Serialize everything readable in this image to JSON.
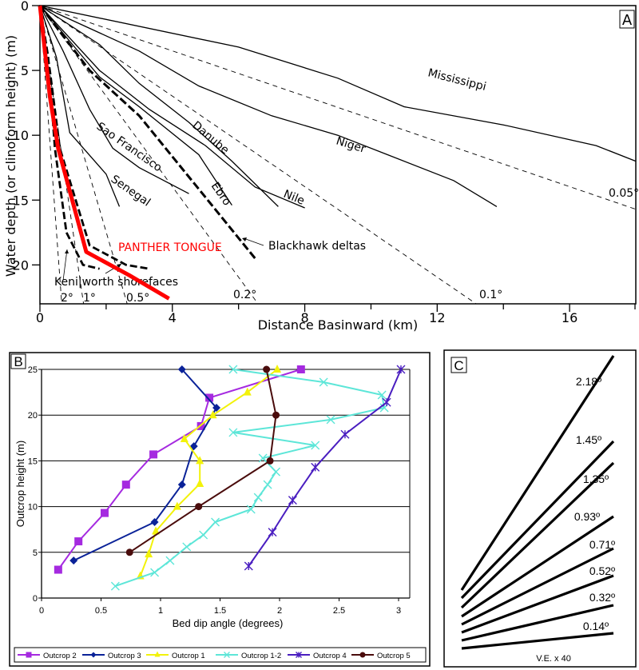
{
  "chart_data": [
    {
      "panel": "A",
      "type": "line",
      "xlabel": "Distance Basinward (km)",
      "ylabel": "Water depth (or clinoform height) (m)",
      "xlim": [
        0,
        18
      ],
      "ylim": [
        0,
        23
      ],
      "y_inverted": true,
      "xticks": [
        0,
        4,
        8,
        12,
        16
      ],
      "xtick_minor": [
        2,
        6,
        10,
        14,
        18
      ],
      "yticks": [
        0,
        5,
        10,
        15,
        20
      ],
      "panel_label": "A",
      "rivers": [
        {
          "name": "Mississippi",
          "label": "Mississippi",
          "points": [
            [
              0,
              0
            ],
            [
              6,
              3.2
            ],
            [
              9,
              5.6
            ],
            [
              11,
              7.8
            ],
            [
              14,
              9.2
            ],
            [
              16.8,
              10.8
            ],
            [
              18,
              12
            ]
          ]
        },
        {
          "name": "Niger",
          "label": "Niger",
          "points": [
            [
              0,
              0
            ],
            [
              3,
              3.5
            ],
            [
              4.8,
              6.2
            ],
            [
              7,
              8.5
            ],
            [
              9,
              10
            ],
            [
              10.5,
              11.5
            ],
            [
              12.5,
              13.5
            ],
            [
              13.8,
              15.5
            ]
          ]
        },
        {
          "name": "Danube",
          "label": "Danube",
          "points": [
            [
              0,
              0
            ],
            [
              1.8,
              3
            ],
            [
              3,
              6
            ],
            [
              4.5,
              9
            ],
            [
              5.8,
              12
            ],
            [
              7.2,
              15.5
            ]
          ]
        },
        {
          "name": "Nile",
          "label": "Nile",
          "points": [
            [
              0,
              0
            ],
            [
              1.8,
              5
            ],
            [
              3.3,
              8
            ],
            [
              5,
              10.8
            ],
            [
              6.5,
              14
            ],
            [
              8,
              15.6
            ]
          ]
        },
        {
          "name": "Ebro",
          "label": "Ebro",
          "points": [
            [
              0,
              0
            ],
            [
              1.8,
              5.5
            ],
            [
              3,
              7.8
            ],
            [
              4.8,
              11.5
            ],
            [
              5.8,
              15.4
            ]
          ]
        },
        {
          "name": "Sao Francisco",
          "label": "Sao Francisco",
          "points": [
            [
              0,
              0
            ],
            [
              0.7,
              3.5
            ],
            [
              1.5,
              8
            ],
            [
              2.2,
              11
            ],
            [
              3,
              12.5
            ],
            [
              4.5,
              14.5
            ]
          ]
        },
        {
          "name": "Senegal",
          "label": "Senegal",
          "points": [
            [
              0,
              0
            ],
            [
              0.5,
              4
            ],
            [
              0.9,
              9.8
            ],
            [
              2,
              13
            ],
            [
              2.4,
              15.5
            ]
          ]
        }
      ],
      "panther_tongue": {
        "label": "PANTHER TONGUE",
        "color": "#ff0000",
        "points": [
          [
            0,
            0
          ],
          [
            0.3,
            7
          ],
          [
            0.55,
            11
          ],
          [
            1.4,
            19
          ],
          [
            2.7,
            20.8
          ],
          [
            3.9,
            22.6
          ]
        ]
      },
      "blackhawk_deltas": {
        "label": "Blackhawk deltas",
        "points": [
          [
            0,
            0
          ],
          [
            1.5,
            5
          ],
          [
            3,
            8.5
          ],
          [
            6.5,
            19.5
          ]
        ]
      },
      "kenilworth_shorefaces": {
        "label": "Keni|worth shorefaces",
        "profiles": [
          {
            "points": [
              [
                0,
                0
              ],
              [
                0.25,
                4
              ],
              [
                0.45,
                11
              ],
              [
                0.8,
                17.5
              ],
              [
                1.3,
                20
              ],
              [
                1.8,
                20.3
              ]
            ]
          },
          {
            "points": [
              [
                0,
                0
              ],
              [
                0.3,
                5
              ],
              [
                0.6,
                11
              ],
              [
                1.5,
                18.5
              ],
              [
                2.6,
                20
              ],
              [
                3.3,
                20.3
              ]
            ]
          }
        ]
      },
      "reference_slopes": [
        {
          "label": "2°",
          "angle_deg": 2
        },
        {
          "label": "1°",
          "angle_deg": 1
        },
        {
          "label": "0.5°",
          "angle_deg": 0.5
        },
        {
          "label": "0.2°",
          "angle_deg": 0.2
        },
        {
          "label": "0.1°",
          "angle_deg": 0.1
        },
        {
          "label": "0.05°",
          "angle_deg": 0.05
        }
      ]
    },
    {
      "panel": "B",
      "type": "line",
      "xlabel": "Bed dip angle (degrees)",
      "ylabel": "Outcrop height (m)",
      "xlim": [
        0,
        3
      ],
      "ylim": [
        0,
        25
      ],
      "xticks": [
        "0",
        "0.5",
        "1",
        "1.5",
        "2",
        "2.5",
        "3"
      ],
      "yticks": [
        "0",
        "5",
        "10",
        "15",
        "20",
        "25"
      ],
      "grid": true,
      "legend": "bottom",
      "panel_label": "B",
      "series": [
        {
          "name": "Outcrop 2",
          "color": "#a52ae0",
          "marker": "square",
          "points": [
            [
              0.14,
              3.1
            ],
            [
              0.31,
              6.2
            ],
            [
              0.53,
              9.3
            ],
            [
              0.71,
              12.4
            ],
            [
              0.94,
              15.7
            ],
            [
              1.34,
              18.8
            ],
            [
              1.41,
              21.9
            ],
            [
              2.18,
              25
            ]
          ]
        },
        {
          "name": "Outcrop 3",
          "color": "#0a2298",
          "marker": "diamond",
          "points": [
            [
              0.27,
              4.1
            ],
            [
              0.95,
              8.3
            ],
            [
              1.18,
              12.4
            ],
            [
              1.28,
              16.6
            ],
            [
              1.47,
              20.8
            ],
            [
              1.18,
              25
            ]
          ]
        },
        {
          "name": "Outcrop 1",
          "color": "#f2f20a",
          "marker": "triangle",
          "points": [
            [
              0.83,
              2.4
            ],
            [
              0.9,
              4.8
            ],
            [
              0.96,
              7.3
            ],
            [
              1.14,
              10
            ],
            [
              1.33,
              12.5
            ],
            [
              1.33,
              15
            ],
            [
              1.2,
              17.4
            ],
            [
              1.44,
              20
            ],
            [
              1.73,
              22.5
            ],
            [
              1.98,
              25
            ]
          ]
        },
        {
          "name": "Outcrop 1-2",
          "color": "#5de6d8",
          "marker": "x",
          "points": [
            [
              0.62,
              1.3
            ],
            [
              0.95,
              2.8
            ],
            [
              1.08,
              4.1
            ],
            [
              1.22,
              5.6
            ],
            [
              1.36,
              6.9
            ],
            [
              1.46,
              8.3
            ],
            [
              1.76,
              9.7
            ],
            [
              1.82,
              11
            ],
            [
              1.9,
              12.4
            ],
            [
              1.97,
              13.8
            ],
            [
              1.86,
              15.3
            ],
            [
              2.3,
              16.7
            ],
            [
              1.61,
              18.1
            ],
            [
              2.43,
              19.5
            ],
            [
              2.88,
              20.8
            ],
            [
              2.86,
              22.2
            ],
            [
              2.37,
              23.6
            ],
            [
              1.61,
              25
            ]
          ]
        },
        {
          "name": "Outcrop 4",
          "color": "#4a1ec0",
          "marker": "asterisk",
          "points": [
            [
              1.74,
              3.5
            ],
            [
              1.94,
              7.2
            ],
            [
              2.11,
              10.7
            ],
            [
              2.3,
              14.3
            ],
            [
              2.55,
              17.9
            ],
            [
              2.9,
              21.4
            ],
            [
              3.02,
              25
            ]
          ]
        },
        {
          "name": "Outcrop 5",
          "color": "#4a0c0c",
          "marker": "circle",
          "points": [
            [
              0.74,
              5
            ],
            [
              1.32,
              10
            ],
            [
              1.92,
              15
            ],
            [
              1.97,
              20
            ],
            [
              1.89,
              25
            ]
          ]
        }
      ]
    },
    {
      "panel": "C",
      "type": "diagram",
      "panel_label": "C",
      "note": "V.E. x 40",
      "dip_lines": [
        {
          "label": "2.18º",
          "angle_deg": 2.18
        },
        {
          "label": "1.45º",
          "angle_deg": 1.45
        },
        {
          "label": "1.35º",
          "angle_deg": 1.35
        },
        {
          "label": "0.93º",
          "angle_deg": 0.93
        },
        {
          "label": "0.71º",
          "angle_deg": 0.71
        },
        {
          "label": "0.52º",
          "angle_deg": 0.52
        },
        {
          "label": "0.32º",
          "angle_deg": 0.32
        },
        {
          "label": "0.14º",
          "angle_deg": 0.14
        }
      ]
    }
  ]
}
